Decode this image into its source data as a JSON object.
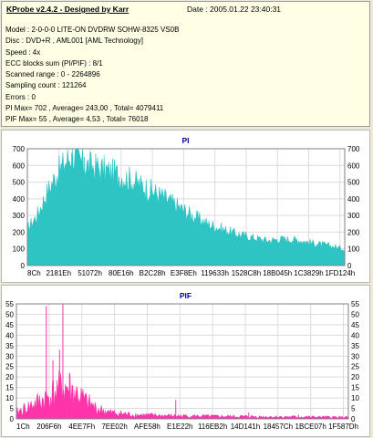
{
  "header": {
    "title": "KProbe v2.4.2 - Designed by Karr",
    "date": "Date : 2005.01.22 23:40:31"
  },
  "info_lines": [
    "Model : 2-0-0-0 LITE-ON DVDRW SOHW-8325  VS0B",
    "Disc : DVD+R , AML001 [AML Technology]",
    "Speed : 4x",
    "ECC blocks sum (PI/PIF) : 8/1",
    "Scanned range : 0 - 2264896",
    "Sampling count : 121264",
    "Errors : 0",
    "PI Max= 702 , Average= 243,00 , Total= 4079411",
    "PIF Max= 55 , Average= 4,53 , Total= 76018"
  ],
  "colors": {
    "pi": "#2ec4c4",
    "pif": "#ff33aa",
    "grid": "#dcdcdc"
  },
  "chart_data": [
    {
      "type": "area",
      "title": "PI",
      "ylim": [
        0,
        700
      ],
      "yticks": [
        0,
        100,
        200,
        300,
        400,
        500,
        600,
        700
      ],
      "x_ticks": [
        "8Ch",
        "2181Eh",
        "51072h",
        "80E16h",
        "B2C28h",
        "E3F8Eh",
        "119633h",
        "1528C8h",
        "18B045h",
        "1C3829h",
        "1FD124h"
      ],
      "profile": [
        [
          0,
          220
        ],
        [
          3,
          300
        ],
        [
          6,
          430
        ],
        [
          9,
          540
        ],
        [
          12,
          620
        ],
        [
          14,
          665
        ],
        [
          16,
          630
        ],
        [
          19,
          600
        ],
        [
          23,
          580
        ],
        [
          27,
          555
        ],
        [
          32,
          520
        ],
        [
          37,
          470
        ],
        [
          42,
          420
        ],
        [
          47,
          360
        ],
        [
          52,
          300
        ],
        [
          57,
          250
        ],
        [
          62,
          215
        ],
        [
          67,
          185
        ],
        [
          72,
          165
        ],
        [
          76,
          150
        ],
        [
          80,
          160
        ],
        [
          85,
          155
        ],
        [
          90,
          135
        ],
        [
          95,
          120
        ],
        [
          100,
          100
        ]
      ],
      "peaks": [
        [
          16,
          690
        ],
        [
          14,
          675
        ],
        [
          18,
          650
        ],
        [
          22,
          620
        ],
        [
          25,
          600
        ]
      ]
    },
    {
      "type": "area",
      "title": "PIF",
      "ylim": [
        0,
        55
      ],
      "yticks": [
        0,
        5,
        10,
        15,
        20,
        25,
        30,
        35,
        40,
        45,
        50,
        55
      ],
      "x_ticks": [
        "1Ch",
        "206F6h",
        "4EE7Fh",
        "7EE02h",
        "AFE58h",
        "E1E22h",
        "116EB2h",
        "14D141h",
        "18457Ch",
        "1BCE07h",
        "1F587Dh"
      ],
      "profile": [
        [
          0,
          3
        ],
        [
          4,
          6
        ],
        [
          8,
          9
        ],
        [
          12,
          13
        ],
        [
          15,
          15
        ],
        [
          18,
          12
        ],
        [
          21,
          8
        ],
        [
          24,
          5
        ],
        [
          28,
          3
        ],
        [
          35,
          2
        ],
        [
          45,
          1.5
        ],
        [
          60,
          1.2
        ],
        [
          80,
          1
        ],
        [
          100,
          0.8
        ]
      ],
      "peaks": [
        [
          9,
          54
        ],
        [
          14,
          55
        ],
        [
          11,
          28
        ],
        [
          16,
          22
        ],
        [
          13,
          33
        ],
        [
          48,
          9
        ],
        [
          70,
          3
        ],
        [
          85,
          2
        ]
      ]
    }
  ]
}
